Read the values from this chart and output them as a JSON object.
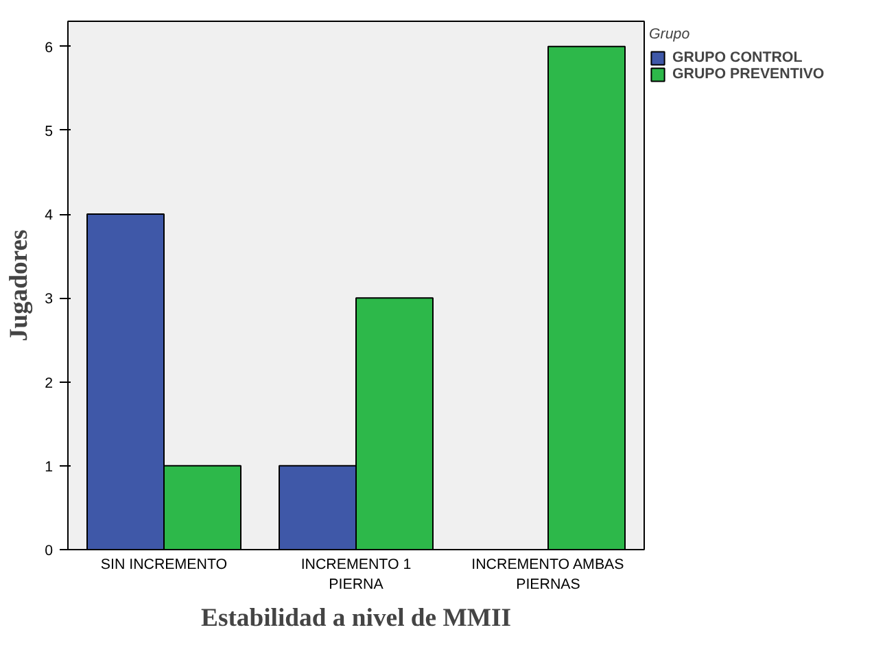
{
  "chart_data": {
    "type": "bar",
    "xlabel": "Estabilidad a nivel de MMII",
    "ylabel": "Jugadores",
    "legend_title": "Grupo",
    "categories": [
      "SIN INCREMENTO",
      "INCREMENTO 1 PIERNA",
      "INCREMENTO AMBAS PIERNAS"
    ],
    "series": [
      {
        "name": "GRUPO CONTROL",
        "color": "#3f58a8",
        "values": [
          4,
          1,
          null
        ]
      },
      {
        "name": "GRUPO PREVENTIVO",
        "color": "#2db84a",
        "values": [
          1,
          3,
          6
        ]
      }
    ],
    "ylim": [
      0,
      6.3
    ],
    "yticks": [
      0,
      1,
      2,
      3,
      4,
      5,
      6
    ],
    "legend": "top right"
  }
}
